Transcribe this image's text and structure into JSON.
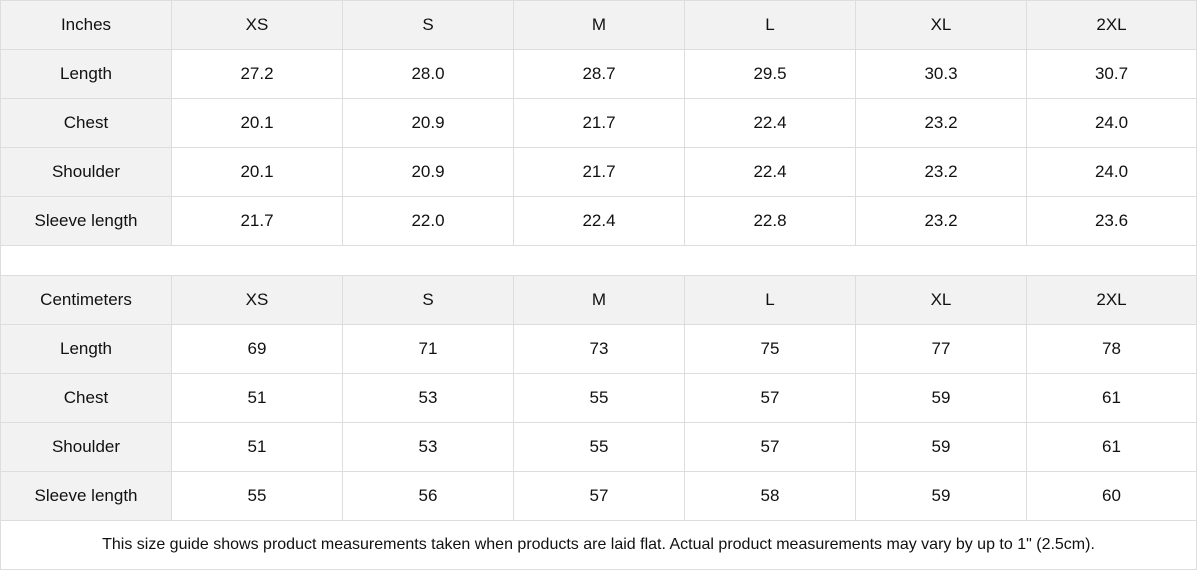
{
  "sizes": [
    "XS",
    "S",
    "M",
    "L",
    "XL",
    "2XL"
  ],
  "inches": {
    "unit_label": "Inches",
    "rows": [
      {
        "label": "Length",
        "values": [
          "27.2",
          "28.0",
          "28.7",
          "29.5",
          "30.3",
          "30.7"
        ]
      },
      {
        "label": "Chest",
        "values": [
          "20.1",
          "20.9",
          "21.7",
          "22.4",
          "23.2",
          "24.0"
        ]
      },
      {
        "label": "Shoulder",
        "values": [
          "20.1",
          "20.9",
          "21.7",
          "22.4",
          "23.2",
          "24.0"
        ]
      },
      {
        "label": "Sleeve length",
        "values": [
          "21.7",
          "22.0",
          "22.4",
          "22.8",
          "23.2",
          "23.6"
        ]
      }
    ]
  },
  "centimeters": {
    "unit_label": "Centimeters",
    "rows": [
      {
        "label": "Length",
        "values": [
          "69",
          "71",
          "73",
          "75",
          "77",
          "78"
        ]
      },
      {
        "label": "Chest",
        "values": [
          "51",
          "53",
          "55",
          "57",
          "59",
          "61"
        ]
      },
      {
        "label": "Shoulder",
        "values": [
          "51",
          "53",
          "55",
          "57",
          "59",
          "61"
        ]
      },
      {
        "label": "Sleeve length",
        "values": [
          "55",
          "56",
          "57",
          "58",
          "59",
          "60"
        ]
      }
    ]
  },
  "note": "This size guide shows product measurements taken when products are laid flat.  Actual product measurements may vary by up to 1\" (2.5cm).",
  "colors": {
    "header_bg": "#f2f2f2",
    "border": "#dddddd"
  }
}
